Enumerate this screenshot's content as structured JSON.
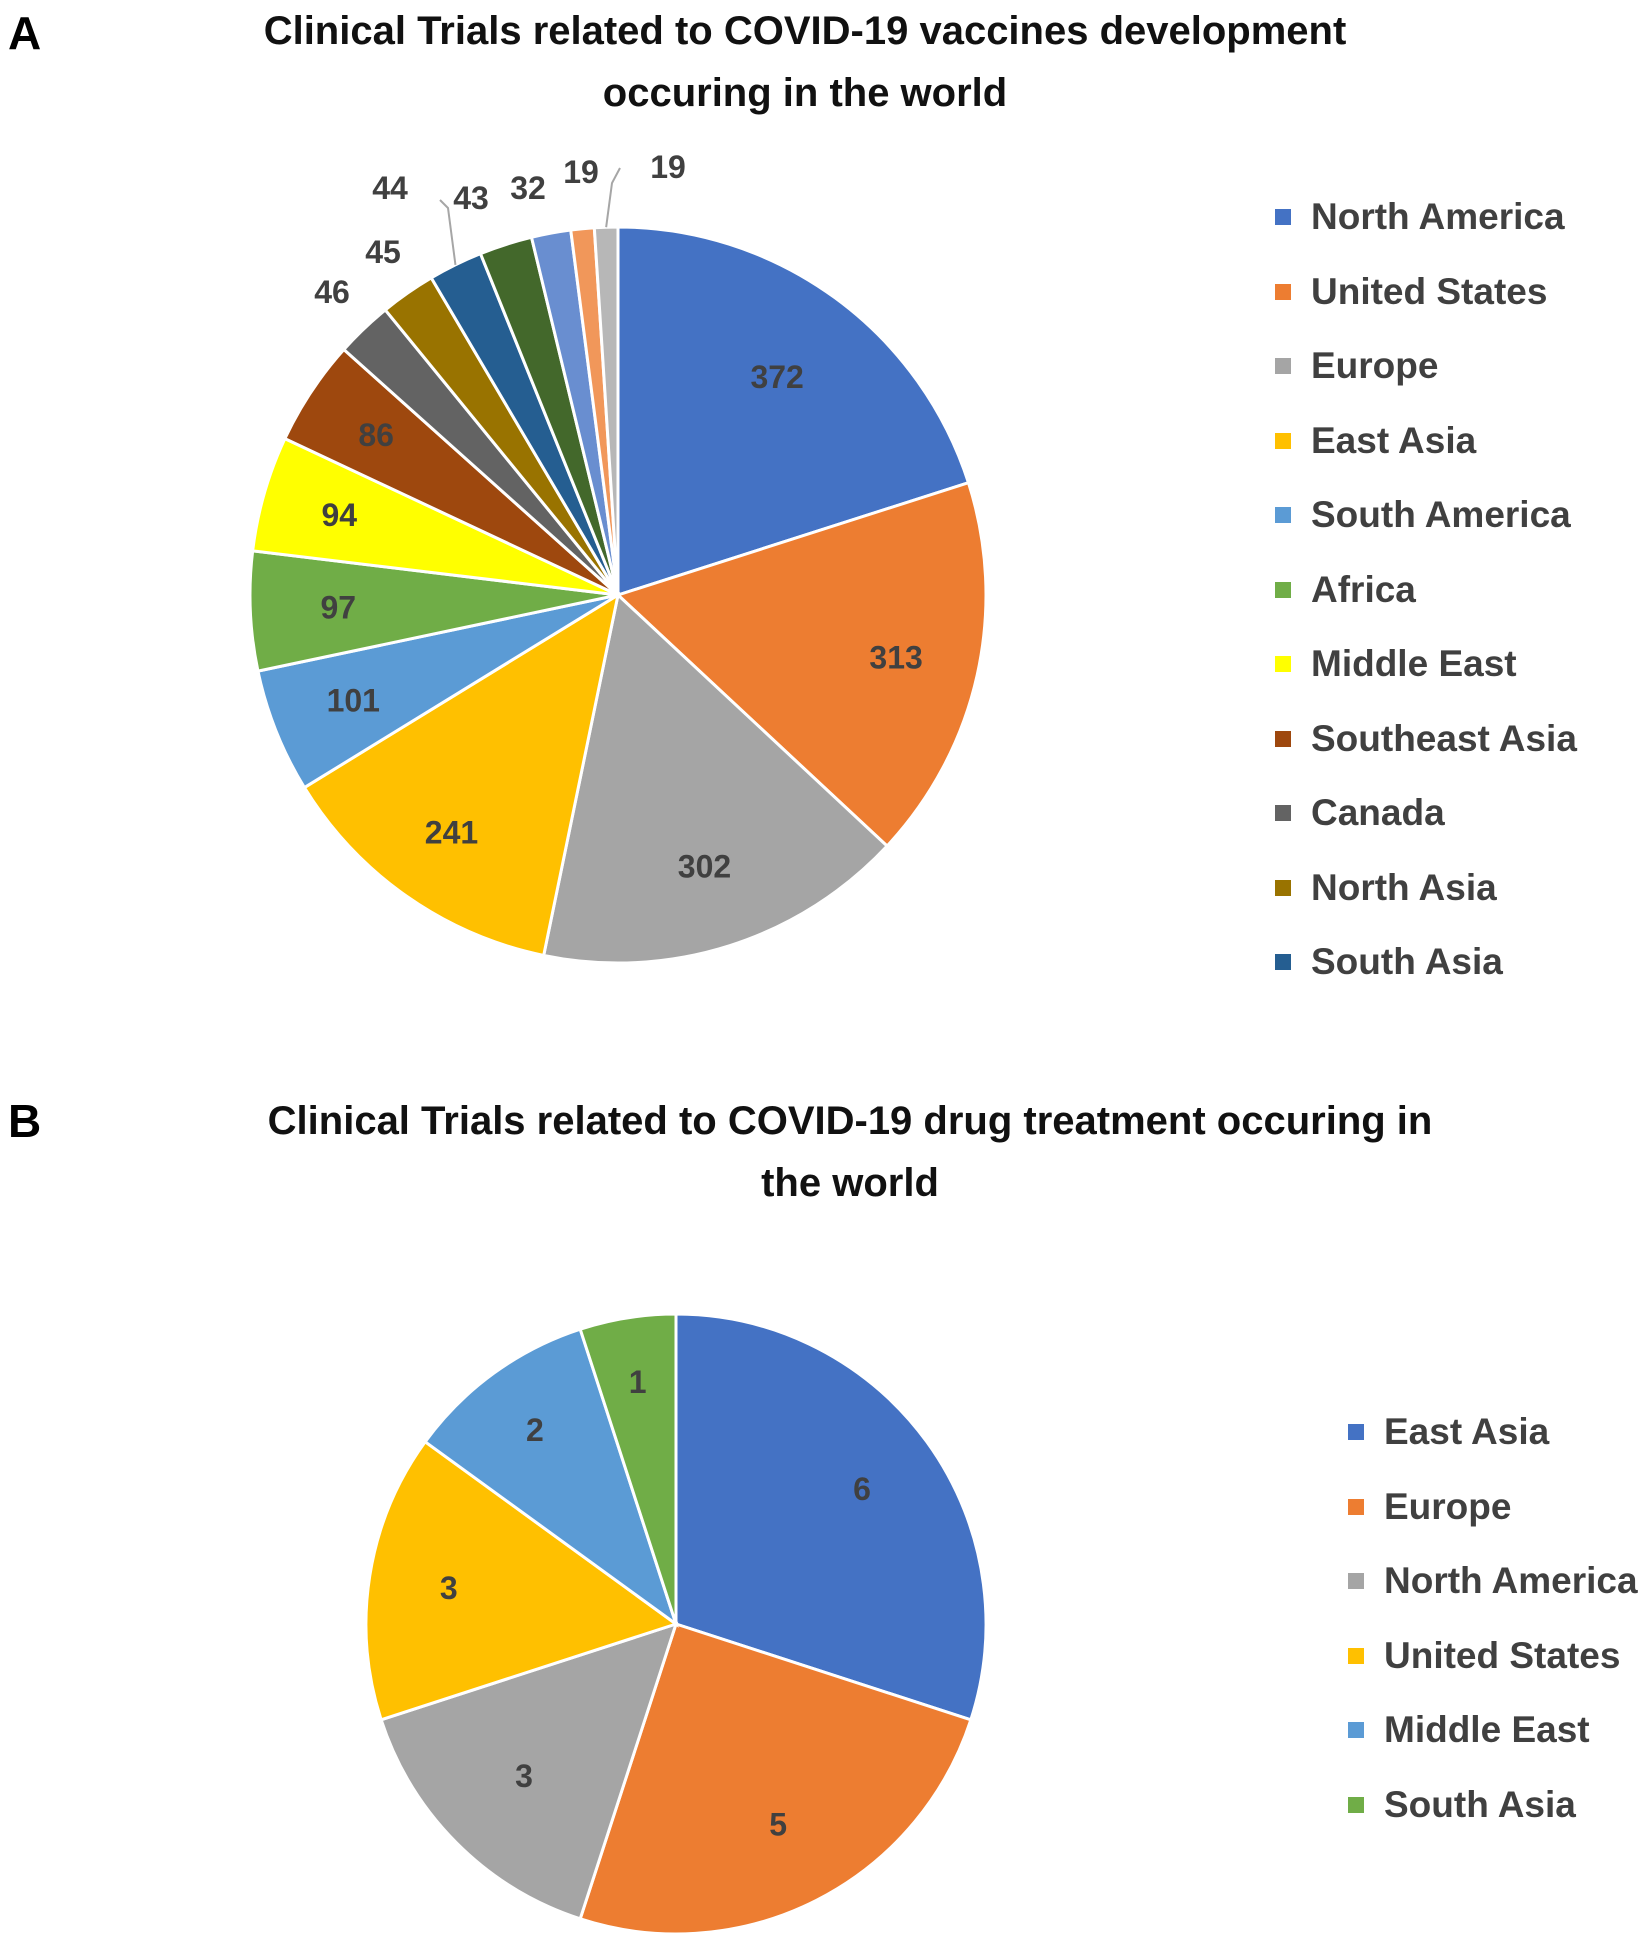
{
  "panels": {
    "a": {
      "label": "A",
      "title_line1": "Clinical Trials related to COVID-19 vaccines development",
      "title_line2": "occuring in the world"
    },
    "b": {
      "label": "B",
      "title_line1": "Clinical Trials related to COVID-19 drug treatment occuring in",
      "title_line2": "the world"
    }
  },
  "chart_data": [
    {
      "type": "pie",
      "title": "Clinical Trials related to COVID-19 vaccines development occuring in the world",
      "legend_position": "right",
      "slices": [
        {
          "label": "North America",
          "value": 372,
          "color": "#4472C4",
          "legend": true
        },
        {
          "label": "United States",
          "value": 313,
          "color": "#ED7D31",
          "legend": true
        },
        {
          "label": "Europe",
          "value": 302,
          "color": "#A5A5A5",
          "legend": true
        },
        {
          "label": "East Asia",
          "value": 241,
          "color": "#FFC000",
          "legend": true
        },
        {
          "label": "South America",
          "value": 101,
          "color": "#5B9BD5",
          "legend": true
        },
        {
          "label": "Africa",
          "value": 97,
          "color": "#70AD47",
          "legend": true
        },
        {
          "label": "Middle East",
          "value": 94,
          "color": "#FFFF00",
          "legend": true
        },
        {
          "label": "Southeast Asia",
          "value": 86,
          "color": "#9E480E",
          "legend": true
        },
        {
          "label": "Canada",
          "value": 46,
          "color": "#636363",
          "legend": true
        },
        {
          "label": "North Asia",
          "value": 45,
          "color": "#997300",
          "legend": true
        },
        {
          "label": "South Asia",
          "value": 44,
          "color": "#255E91",
          "legend": true
        },
        {
          "label": "",
          "value": 43,
          "color": "#43682B",
          "legend": false
        },
        {
          "label": "",
          "value": 32,
          "color": "#698ED0",
          "legend": false
        },
        {
          "label": "",
          "value": 19,
          "color": "#F1975A",
          "legend": false
        },
        {
          "label": "",
          "value": 19,
          "color": "#B7B7B7",
          "legend": false
        }
      ]
    },
    {
      "type": "pie",
      "title": "Clinical Trials related to COVID-19 drug treatment occuring in the world",
      "legend_position": "right",
      "slices": [
        {
          "label": "East Asia",
          "value": 6,
          "color": "#4472C4",
          "legend": true
        },
        {
          "label": "Europe",
          "value": 5,
          "color": "#ED7D31",
          "legend": true
        },
        {
          "label": "North America",
          "value": 3,
          "color": "#A5A5A5",
          "legend": true
        },
        {
          "label": "United States",
          "value": 3,
          "color": "#FFC000",
          "legend": true
        },
        {
          "label": "Middle East",
          "value": 2,
          "color": "#5B9BD5",
          "legend": true
        },
        {
          "label": "South Asia",
          "value": 1,
          "color": "#70AD47",
          "legend": true
        }
      ]
    }
  ]
}
